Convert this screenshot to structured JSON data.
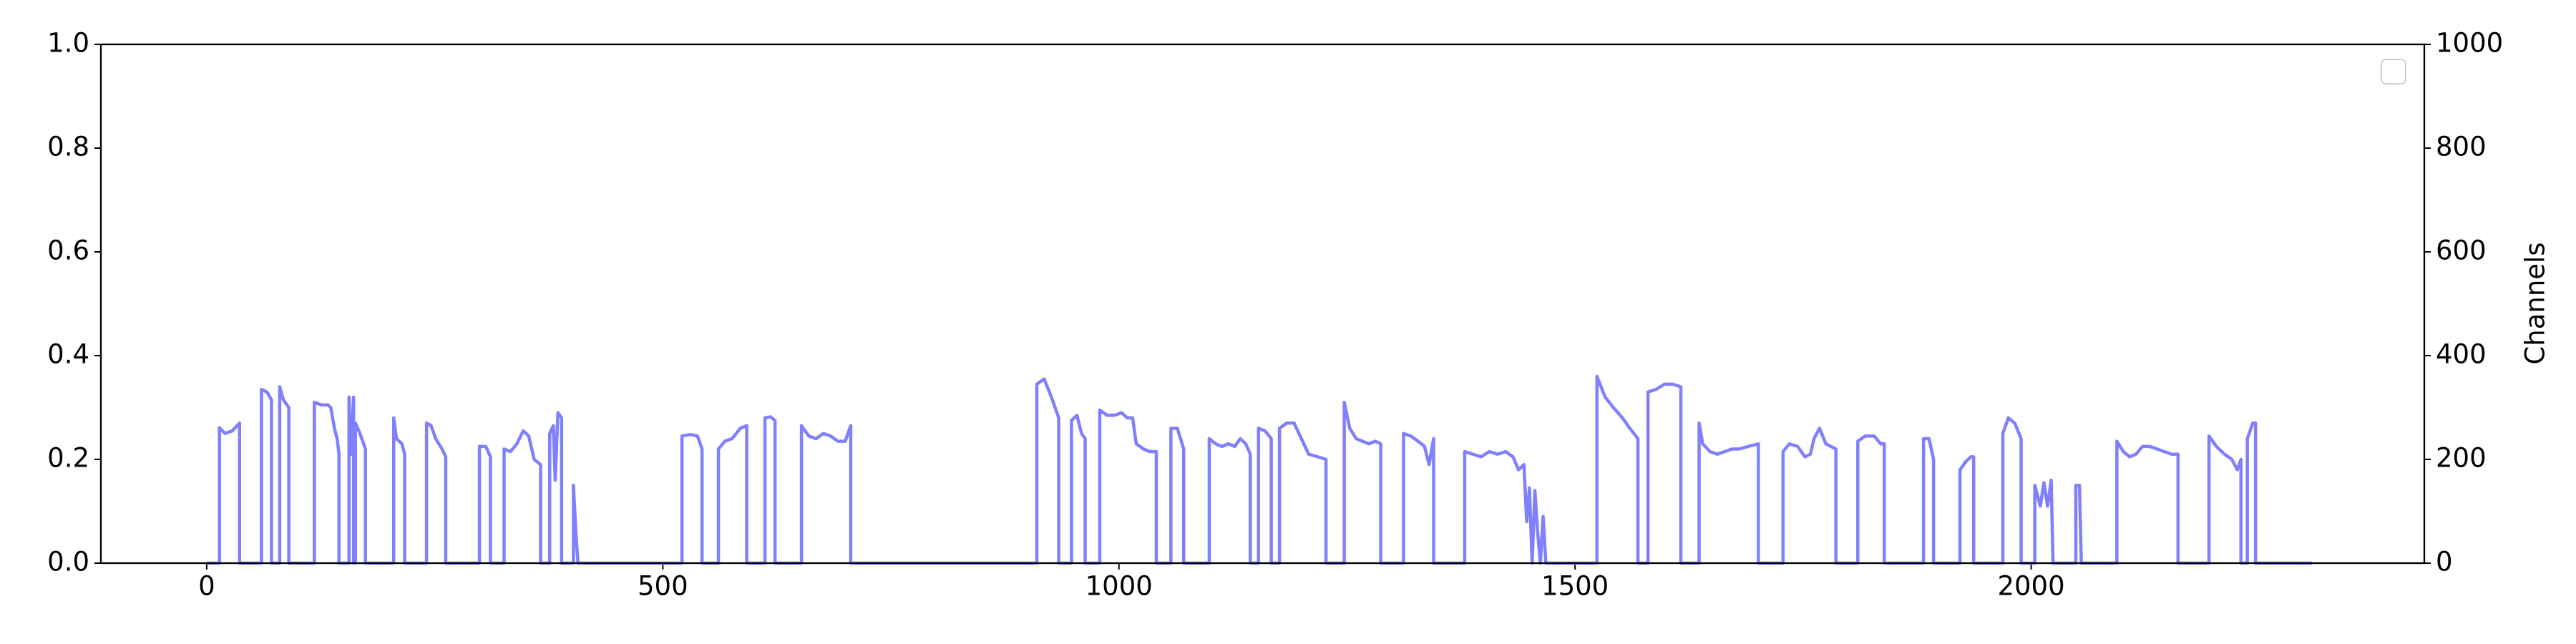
{
  "chart_data": {
    "type": "line",
    "ylabel2": "Channels",
    "xlim": [
      -116,
      2431
    ],
    "xticks": [
      0,
      500,
      1000,
      1500,
      2000
    ],
    "ylim": [
      0,
      1
    ],
    "yticks": [
      {
        "value": 0,
        "label": "0.0"
      },
      {
        "value": 0.2,
        "label": "0.2"
      },
      {
        "value": 0.4,
        "label": "0.4"
      },
      {
        "value": 0.6,
        "label": "0.6"
      },
      {
        "value": 0.8,
        "label": "0.8"
      },
      {
        "value": 1,
        "label": "1.0"
      }
    ],
    "y2lim": [
      0,
      1000
    ],
    "y2ticks": [
      0,
      200,
      400,
      600,
      800,
      1000
    ],
    "legend": "upper right",
    "x": [
      0,
      14,
      14,
      20,
      28,
      36,
      36,
      60,
      60,
      66,
      71,
      71,
      80,
      80,
      84,
      90,
      90,
      118,
      118,
      126,
      133,
      136,
      140,
      143,
      145,
      145,
      156,
      156,
      158,
      161,
      161,
      163,
      163,
      168,
      174,
      174,
      205,
      205,
      208,
      214,
      217,
      217,
      241,
      241,
      246,
      251,
      258,
      262,
      262,
      299,
      299,
      306,
      311,
      311,
      326,
      326,
      333,
      340,
      347,
      353,
      359,
      366,
      366,
      376,
      376,
      380,
      382,
      385,
      389,
      389,
      402,
      402,
      405,
      407,
      521,
      521,
      530,
      538,
      543,
      543,
      561,
      561,
      568,
      576,
      585,
      592,
      592,
      612,
      612,
      618,
      623,
      623,
      652,
      652,
      660,
      668,
      676,
      684,
      692,
      700,
      706,
      706,
      910,
      910,
      918,
      926,
      934,
      934,
      948,
      948,
      954,
      959,
      963,
      963,
      979,
      979,
      987,
      995,
      1003,
      1009,
      1015,
      1019,
      1027,
      1034,
      1041,
      1041,
      1057,
      1057,
      1064,
      1071,
      1071,
      1099,
      1099,
      1106,
      1113,
      1120,
      1127,
      1133,
      1139,
      1144,
      1144,
      1153,
      1153,
      1160,
      1167,
      1167,
      1176,
      1176,
      1184,
      1192,
      1200,
      1208,
      1218,
      1227,
      1227,
      1247,
      1247,
      1253,
      1260,
      1267,
      1274,
      1281,
      1287,
      1287,
      1312,
      1312,
      1320,
      1328,
      1335,
      1340,
      1345,
      1345,
      1379,
      1379,
      1388,
      1397,
      1406,
      1415,
      1424,
      1432,
      1438,
      1444,
      1447,
      1450,
      1453,
      1456,
      1459,
      1462,
      1465,
      1468,
      1524,
      1524,
      1533,
      1542,
      1552,
      1560,
      1569,
      1569,
      1580,
      1580,
      1589,
      1598,
      1607,
      1616,
      1616,
      1636,
      1636,
      1640,
      1648,
      1656,
      1664,
      1672,
      1680,
      1690,
      1701,
      1701,
      1728,
      1728,
      1735,
      1744,
      1752,
      1758,
      1762,
      1768,
      1775,
      1786,
      1786,
      1810,
      1810,
      1818,
      1828,
      1835,
      1839,
      1839,
      1882,
      1882,
      1888,
      1893,
      1893,
      1922,
      1922,
      1928,
      1934,
      1937,
      1937,
      1969,
      1969,
      1975,
      1982,
      1989,
      1989,
      2004,
      2004,
      2010,
      2014,
      2018,
      2022,
      2024,
      2049,
      2049,
      2053,
      2055,
      2094,
      2094,
      2101,
      2108,
      2115,
      2122,
      2130,
      2138,
      2146,
      2154,
      2161,
      2161,
      2195,
      2195,
      2203,
      2212,
      2220,
      2226,
      2230,
      2230,
      2237,
      2237,
      2243,
      2246,
      2246,
      2308
    ],
    "series": [
      {
        "color": "#8080ff",
        "axis": "y2",
        "values": [
          0,
          0,
          261,
          250,
          255,
          270,
          0,
          0,
          335,
          330,
          315,
          0,
          0,
          340,
          315,
          300,
          0,
          0,
          310,
          305,
          305,
          300,
          260,
          240,
          210,
          0,
          0,
          320,
          210,
          320,
          0,
          0,
          270,
          250,
          220,
          0,
          0,
          280,
          240,
          230,
          210,
          0,
          0,
          270,
          265,
          240,
          220,
          205,
          0,
          0,
          225,
          225,
          205,
          0,
          0,
          220,
          215,
          230,
          255,
          245,
          200,
          190,
          0,
          0,
          250,
          265,
          160,
          290,
          280,
          0,
          0,
          150,
          50,
          0,
          0,
          245,
          248,
          245,
          220,
          0,
          0,
          220,
          235,
          240,
          260,
          265,
          0,
          0,
          280,
          282,
          275,
          0,
          0,
          265,
          245,
          240,
          250,
          245,
          235,
          235,
          265,
          0,
          0,
          345,
          355,
          320,
          280,
          0,
          0,
          275,
          285,
          250,
          240,
          0,
          0,
          295,
          285,
          285,
          290,
          280,
          280,
          230,
          220,
          215,
          215,
          0,
          0,
          260,
          260,
          220,
          0,
          0,
          240,
          230,
          225,
          230,
          225,
          240,
          230,
          210,
          0,
          0,
          260,
          255,
          240,
          0,
          0,
          260,
          270,
          270,
          240,
          210,
          205,
          200,
          0,
          0,
          310,
          260,
          240,
          235,
          230,
          235,
          230,
          0,
          0,
          250,
          245,
          235,
          225,
          190,
          240,
          0,
          0,
          215,
          210,
          205,
          215,
          210,
          215,
          205,
          180,
          190,
          80,
          145,
          0,
          140,
          60,
          0,
          90,
          0,
          0,
          360,
          320,
          300,
          280,
          260,
          240,
          0,
          0,
          330,
          335,
          345,
          345,
          340,
          0,
          0,
          270,
          230,
          215,
          210,
          215,
          220,
          220,
          225,
          230,
          0,
          0,
          215,
          230,
          225,
          205,
          210,
          240,
          260,
          230,
          220,
          0,
          0,
          235,
          245,
          245,
          230,
          230,
          0,
          0,
          240,
          240,
          200,
          0,
          0,
          180,
          195,
          205,
          205,
          0,
          0,
          250,
          280,
          270,
          240,
          0,
          0,
          150,
          110,
          155,
          110,
          160,
          0,
          0,
          150,
          150,
          0,
          0,
          235,
          215,
          205,
          210,
          225,
          225,
          220,
          215,
          210,
          210,
          0,
          0,
          245,
          225,
          210,
          200,
          180,
          200,
          0,
          0,
          240,
          270,
          270,
          0,
          0
        ]
      }
    ]
  }
}
